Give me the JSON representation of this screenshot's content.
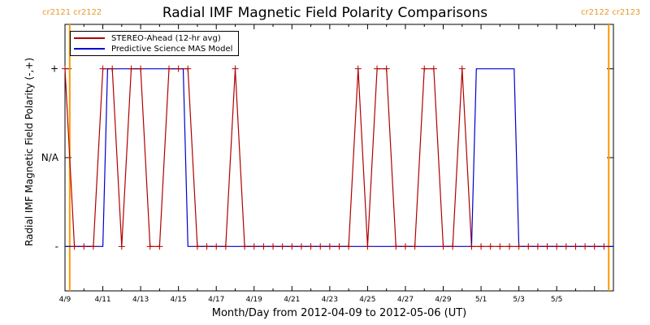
{
  "title": "Radial IMF Magnetic Field Polarity Comparisons",
  "carrington": {
    "left": "cr2121 cr2122",
    "right": "cr2122 cr2123"
  },
  "colors": {
    "stereo": "#b00000",
    "model": "#0000cc",
    "carrington": "#ff9900"
  },
  "chart_data": {
    "type": "line",
    "title": "Radial IMF Magnetic Field Polarity Comparisons",
    "xlabel": "Month/Day from 2012-04-09 to 2012-05-06 (UT)",
    "ylabel": "Radial IMF Magnetic Field Polarity (-,+)",
    "xlim": [
      "2012-04-09",
      "2012-05-08"
    ],
    "x_ticks": [
      "4/9",
      "4/11",
      "4/13",
      "4/15",
      "4/17",
      "4/19",
      "4/21",
      "4/23",
      "4/25",
      "4/27",
      "4/29",
      "5/1",
      "5/3",
      "5/5"
    ],
    "x_tick_dates": [
      "2012-04-09",
      "2012-04-11",
      "2012-04-13",
      "2012-04-15",
      "2012-04-17",
      "2012-04-19",
      "2012-04-21",
      "2012-04-23",
      "2012-04-25",
      "2012-04-27",
      "2012-04-29",
      "2012-05-01",
      "2012-05-03",
      "2012-05-05"
    ],
    "y_ticks": [
      "-",
      "N/A",
      "+"
    ],
    "y_tick_values": [
      -1,
      0,
      1
    ],
    "ylim": [
      -1.5,
      1.5
    ],
    "vertical_lines": [
      "2012-04-09T06:00",
      "2012-05-07T18:00"
    ],
    "legend_position": "top-left",
    "series": [
      {
        "name": "STEREO-Ahead (12-hr avg)",
        "x": [
          "2012-04-09T00:00",
          "2012-04-09T12:00",
          "2012-04-10T00:00",
          "2012-04-10T12:00",
          "2012-04-11T00:00",
          "2012-04-11T12:00",
          "2012-04-12T00:00",
          "2012-04-12T12:00",
          "2012-04-13T00:00",
          "2012-04-13T12:00",
          "2012-04-14T00:00",
          "2012-04-14T12:00",
          "2012-04-15T00:00",
          "2012-04-15T12:00",
          "2012-04-16T00:00",
          "2012-04-16T12:00",
          "2012-04-17T00:00",
          "2012-04-17T12:00",
          "2012-04-18T00:00",
          "2012-04-18T12:00",
          "2012-04-19T00:00",
          "2012-04-19T12:00",
          "2012-04-20T00:00",
          "2012-04-20T12:00",
          "2012-04-21T00:00",
          "2012-04-21T12:00",
          "2012-04-22T00:00",
          "2012-04-22T12:00",
          "2012-04-23T00:00",
          "2012-04-23T12:00",
          "2012-04-24T00:00",
          "2012-04-24T12:00",
          "2012-04-25T00:00",
          "2012-04-25T12:00",
          "2012-04-26T00:00",
          "2012-04-26T12:00",
          "2012-04-27T00:00",
          "2012-04-27T12:00",
          "2012-04-28T00:00",
          "2012-04-28T12:00",
          "2012-04-29T00:00",
          "2012-04-29T12:00",
          "2012-04-30T00:00",
          "2012-04-30T12:00",
          "2012-05-01T00:00",
          "2012-05-01T12:00",
          "2012-05-02T00:00",
          "2012-05-02T12:00",
          "2012-05-03T00:00",
          "2012-05-03T12:00",
          "2012-05-04T00:00",
          "2012-05-04T12:00",
          "2012-05-05T00:00",
          "2012-05-05T12:00",
          "2012-05-06T00:00",
          "2012-05-06T12:00",
          "2012-05-07T00:00",
          "2012-05-07T12:00"
        ],
        "values": [
          1,
          -1,
          -1,
          -1,
          1,
          1,
          -1,
          1,
          1,
          -1,
          -1,
          1,
          1,
          1,
          -1,
          -1,
          -1,
          -1,
          1,
          -1,
          -1,
          -1,
          -1,
          -1,
          -1,
          -1,
          -1,
          -1,
          -1,
          -1,
          -1,
          1,
          -1,
          1,
          1,
          -1,
          -1,
          -1,
          1,
          1,
          -1,
          -1,
          1,
          -1,
          -1,
          -1,
          -1,
          -1,
          -1,
          -1,
          -1,
          -1,
          -1,
          -1,
          -1,
          -1,
          -1,
          -1
        ]
      },
      {
        "name": "Predictive Science MAS Model",
        "x": [
          "2012-04-09T00:00",
          "2012-04-10T12:00",
          "2012-04-11T00:00",
          "2012-04-11T06:00",
          "2012-04-15T06:00",
          "2012-04-15T12:00",
          "2012-04-30T12:00",
          "2012-04-30T18:00",
          "2012-05-02T18:00",
          "2012-05-03T00:00",
          "2012-05-08T00:00"
        ],
        "values": [
          -1,
          -1,
          -1,
          1,
          1,
          -1,
          -1,
          1,
          1,
          -1,
          -1
        ]
      }
    ]
  }
}
